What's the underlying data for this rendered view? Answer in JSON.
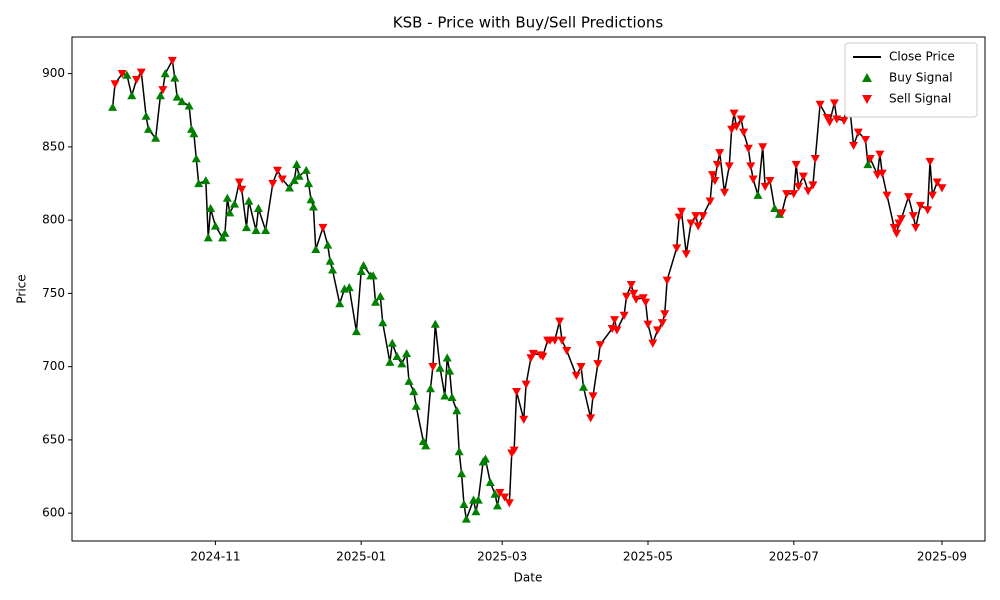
{
  "chart_data": {
    "type": "line",
    "title": "KSB - Price with Buy/Sell Predictions",
    "x_label": "Date",
    "y_label": "Price",
    "xlim": [
      19968,
      20350
    ],
    "ylim": [
      581,
      925
    ],
    "xticks": [
      {
        "value": 20028,
        "label": "2024-11"
      },
      {
        "value": 20089,
        "label": "2025-01"
      },
      {
        "value": 20148,
        "label": "2025-03"
      },
      {
        "value": 20209,
        "label": "2025-05"
      },
      {
        "value": 20270,
        "label": "2025-07"
      },
      {
        "value": 20332,
        "label": "2025-09"
      }
    ],
    "yticks": [
      600,
      650,
      700,
      750,
      800,
      850,
      900
    ],
    "legend": "upper right",
    "series": [
      {
        "name": "Close Price",
        "type": "line",
        "color": "#000000",
        "x": [
          19985,
          19986,
          19989,
          19991,
          19993,
          19995,
          19997,
          19999,
          20000,
          20003,
          20005,
          20006,
          20007,
          20010,
          20011,
          20012,
          20014,
          20017,
          20018,
          20019,
          20020,
          20021,
          20024,
          20025,
          20026,
          20028,
          20031,
          20032,
          20033,
          20034,
          20036,
          20038,
          20039,
          20041,
          20042,
          20045,
          20046,
          20049,
          20052,
          20054,
          20056,
          20059,
          20061,
          20062,
          20063,
          20066,
          20067,
          20068,
          20069,
          20070,
          20073,
          20075,
          20076,
          20077,
          20080,
          20082,
          20084,
          20087,
          20089,
          20090,
          20093,
          20094,
          20095,
          20097,
          20098,
          20101,
          20102,
          20104,
          20106,
          20108,
          20109,
          20111,
          20112,
          20115,
          20116,
          20118,
          20119,
          20120,
          20122,
          20124,
          20125,
          20126,
          20127,
          20129,
          20130,
          20131,
          20132,
          20133,
          20136,
          20137,
          20138,
          20140,
          20141,
          20143,
          20145,
          20146,
          20147,
          20149,
          20151,
          20152,
          20153,
          20154,
          20157,
          20158,
          20160,
          20161,
          20164,
          20165,
          20167,
          20168,
          20170,
          20172,
          20173,
          20175,
          20179,
          20181,
          20182,
          20185,
          20186,
          20188,
          20189,
          20194,
          20195,
          20196,
          20199,
          20200,
          20202,
          20203,
          20204,
          20207,
          20208,
          20209,
          20211,
          20213,
          20215,
          20216,
          20217,
          20221,
          20222,
          20223,
          20225,
          20227,
          20229,
          20230,
          20232,
          20235,
          20236,
          20237,
          20238,
          20239,
          20241,
          20243,
          20244,
          20245,
          20246,
          20248,
          20249,
          20251,
          20252,
          20253,
          20255,
          20257,
          20258,
          20260,
          20262,
          20264,
          20265,
          20267,
          20270,
          20271,
          20272,
          20274,
          20276,
          20278,
          20279,
          20281,
          20284,
          20285,
          20287,
          20288,
          20291,
          20293,
          20295,
          20297,
          20300,
          20301,
          20302,
          20305,
          20306,
          20307,
          20309,
          20312,
          20313,
          20314,
          20315,
          20318,
          20320,
          20321,
          20323,
          20326,
          20327,
          20328,
          20330,
          20332
        ],
        "values": [
          877,
          893,
          900,
          899,
          885,
          896,
          901,
          871,
          862,
          856,
          885,
          889,
          900,
          909,
          897,
          884,
          881,
          878,
          862,
          859,
          842,
          825,
          827,
          788,
          808,
          796,
          788,
          791,
          815,
          805,
          811,
          826,
          821,
          795,
          813,
          793,
          808,
          793,
          825,
          834,
          828,
          822,
          827,
          838,
          830,
          834,
          825,
          814,
          809,
          780,
          795,
          783,
          772,
          766,
          743,
          753,
          754,
          724,
          765,
          769,
          762,
          762,
          744,
          748,
          730,
          703,
          716,
          707,
          702,
          709,
          690,
          683,
          673,
          649,
          646,
          685,
          700,
          729,
          699,
          680,
          706,
          697,
          679,
          670,
          642,
          627,
          606,
          596,
          609,
          601,
          609,
          635,
          637,
          621,
          613,
          605,
          614,
          611,
          607,
          641,
          643,
          683,
          664,
          688,
          706,
          709,
          708,
          707,
          718,
          718,
          718,
          731,
          718,
          711,
          694,
          700,
          686,
          665,
          680,
          702,
          715,
          726,
          732,
          725,
          735,
          748,
          756,
          750,
          746,
          747,
          744,
          729,
          716,
          725,
          730,
          736,
          759,
          781,
          802,
          806,
          777,
          798,
          803,
          796,
          803,
          813,
          831,
          827,
          838,
          846,
          819,
          837,
          862,
          873,
          864,
          869,
          860,
          849,
          837,
          828,
          817,
          850,
          823,
          827,
          808,
          804,
          805,
          818,
          818,
          838,
          823,
          830,
          820,
          824,
          842,
          879,
          870,
          867,
          880,
          869,
          868,
          884,
          851,
          860,
          855,
          838,
          842,
          831,
          845,
          832,
          817,
          795,
          791,
          798,
          801,
          816,
          803,
          795,
          810,
          807,
          840,
          817,
          826,
          822
        ]
      },
      {
        "name": "Buy Signal",
        "type": "scatter",
        "marker": "up",
        "color": "#008000",
        "x": [
          19985,
          19991,
          19993,
          19999,
          20000,
          20003,
          20005,
          20007,
          20011,
          20012,
          20014,
          20017,
          20018,
          20019,
          20020,
          20021,
          20024,
          20025,
          20026,
          20028,
          20031,
          20032,
          20033,
          20034,
          20036,
          20041,
          20042,
          20045,
          20046,
          20049,
          20059,
          20061,
          20062,
          20063,
          20066,
          20067,
          20068,
          20069,
          20070,
          20075,
          20076,
          20077,
          20080,
          20082,
          20084,
          20087,
          20089,
          20090,
          20093,
          20094,
          20095,
          20097,
          20098,
          20101,
          20102,
          20104,
          20106,
          20108,
          20109,
          20111,
          20112,
          20115,
          20116,
          20118,
          20120,
          20122,
          20124,
          20125,
          20126,
          20127,
          20129,
          20130,
          20131,
          20132,
          20133,
          20136,
          20137,
          20138,
          20140,
          20141,
          20143,
          20145,
          20146,
          20182,
          20255,
          20262,
          20264,
          20301
        ],
        "values": [
          877,
          899,
          885,
          871,
          862,
          856,
          885,
          900,
          897,
          884,
          881,
          878,
          862,
          859,
          842,
          825,
          827,
          788,
          808,
          796,
          788,
          791,
          815,
          805,
          811,
          795,
          813,
          793,
          808,
          793,
          822,
          827,
          838,
          830,
          834,
          825,
          814,
          809,
          780,
          783,
          772,
          766,
          743,
          753,
          754,
          724,
          765,
          769,
          762,
          762,
          744,
          748,
          730,
          703,
          716,
          707,
          702,
          709,
          690,
          683,
          673,
          649,
          646,
          685,
          729,
          699,
          680,
          706,
          697,
          679,
          670,
          642,
          627,
          606,
          596,
          609,
          601,
          609,
          635,
          637,
          621,
          613,
          605,
          686,
          817,
          808,
          804,
          838
        ]
      },
      {
        "name": "Sell Signal",
        "type": "scatter",
        "marker": "down",
        "color": "#ff0000",
        "x": [
          19986,
          19989,
          19995,
          19997,
          20006,
          20010,
          20038,
          20039,
          20052,
          20054,
          20056,
          20073,
          20119,
          20147,
          20149,
          20151,
          20152,
          20153,
          20154,
          20157,
          20158,
          20160,
          20161,
          20164,
          20165,
          20167,
          20168,
          20170,
          20172,
          20173,
          20175,
          20179,
          20181,
          20185,
          20186,
          20188,
          20189,
          20194,
          20195,
          20196,
          20199,
          20200,
          20202,
          20203,
          20204,
          20207,
          20208,
          20209,
          20211,
          20213,
          20215,
          20216,
          20217,
          20221,
          20222,
          20223,
          20225,
          20227,
          20229,
          20230,
          20232,
          20235,
          20236,
          20237,
          20238,
          20239,
          20241,
          20243,
          20244,
          20245,
          20246,
          20248,
          20249,
          20251,
          20252,
          20253,
          20257,
          20258,
          20260,
          20265,
          20267,
          20270,
          20271,
          20272,
          20274,
          20276,
          20278,
          20279,
          20281,
          20284,
          20285,
          20287,
          20288,
          20291,
          20293,
          20295,
          20297,
          20300,
          20302,
          20305,
          20306,
          20307,
          20309,
          20312,
          20313,
          20314,
          20315,
          20318,
          20320,
          20321,
          20323,
          20326,
          20327,
          20328,
          20330,
          20332
        ],
        "values": [
          893,
          900,
          896,
          901,
          889,
          909,
          826,
          821,
          825,
          834,
          828,
          795,
          700,
          614,
          611,
          607,
          641,
          643,
          683,
          664,
          688,
          706,
          709,
          708,
          707,
          718,
          718,
          718,
          731,
          718,
          711,
          694,
          700,
          665,
          680,
          702,
          715,
          726,
          732,
          725,
          735,
          748,
          756,
          750,
          746,
          747,
          744,
          729,
          716,
          725,
          730,
          736,
          759,
          781,
          802,
          806,
          777,
          798,
          803,
          796,
          803,
          813,
          831,
          827,
          838,
          846,
          819,
          837,
          862,
          873,
          864,
          869,
          860,
          849,
          837,
          828,
          850,
          823,
          827,
          805,
          818,
          818,
          838,
          823,
          830,
          820,
          824,
          842,
          879,
          870,
          867,
          880,
          869,
          868,
          884,
          851,
          860,
          855,
          842,
          831,
          845,
          832,
          817,
          795,
          791,
          798,
          801,
          816,
          803,
          795,
          810,
          807,
          840,
          817,
          826,
          822
        ]
      }
    ]
  }
}
